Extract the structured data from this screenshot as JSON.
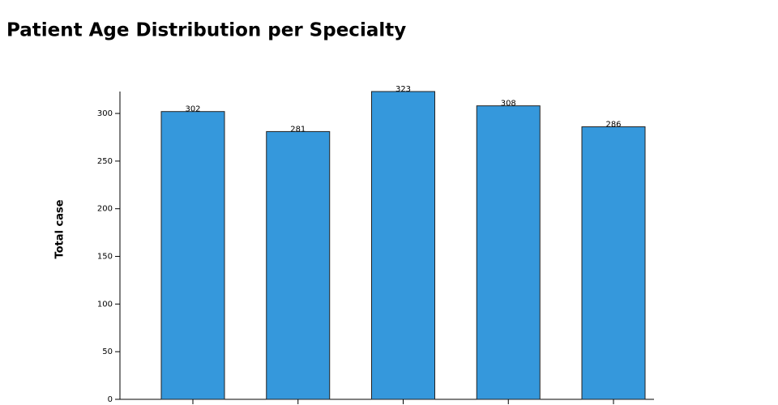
{
  "chart_data": {
    "type": "bar",
    "title": "Patient Age Distribution per Specialty",
    "y_label": "Total case",
    "categories": [
      null,
      null,
      null,
      null,
      null
    ],
    "values": [
      302,
      281,
      323,
      308,
      286
    ],
    "color": "#3598dc",
    "ylim": [
      0,
      323
    ],
    "yticks": [
      0,
      50,
      100,
      150,
      200,
      250,
      300
    ],
    "grid": false
  }
}
